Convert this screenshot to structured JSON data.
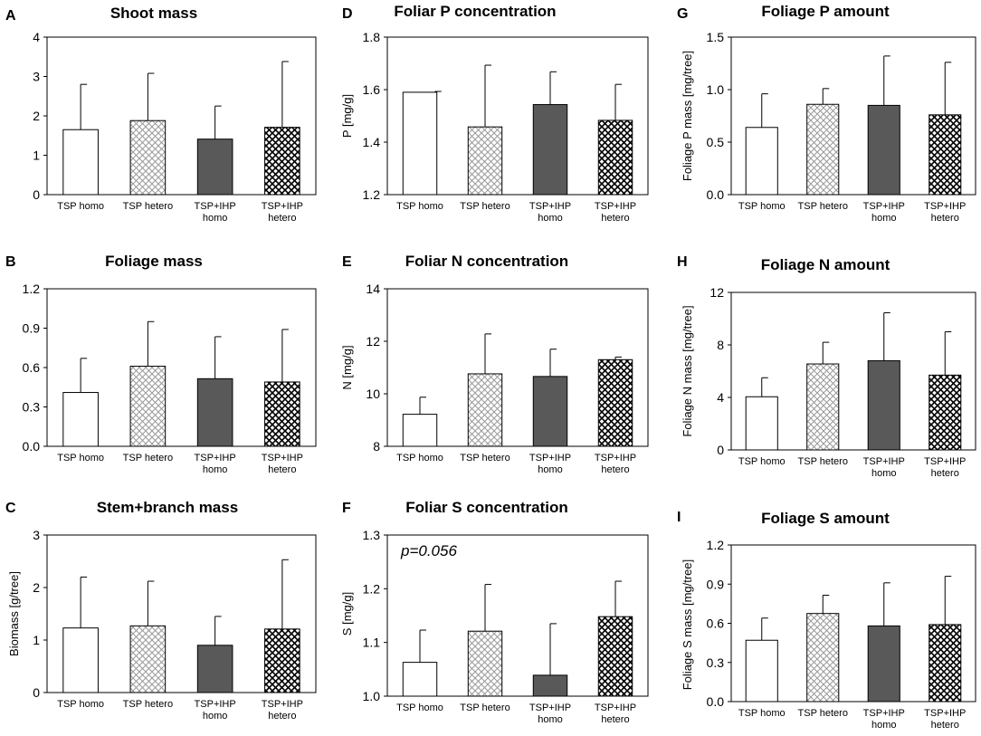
{
  "panels": [
    {
      "panel_label": "A",
      "title": "Shoot mass",
      "ylabel": "",
      "annotation": ""
    },
    {
      "panel_label": "B",
      "title": "Foliage mass",
      "ylabel": "",
      "annotation": ""
    },
    {
      "panel_label": "C",
      "title": "Stem+branch mass",
      "ylabel": "Biomass [g/tree]",
      "annotation": ""
    },
    {
      "panel_label": "D",
      "title": "Foliar P concentration",
      "ylabel": "P [mg/g]",
      "annotation": ""
    },
    {
      "panel_label": "E",
      "title": "Foliar N concentration",
      "ylabel": "N [mg/g]",
      "annotation": ""
    },
    {
      "panel_label": "F",
      "title": "Foliar S concentration",
      "ylabel": "S [mg/g]",
      "annotation": "p=0.056"
    },
    {
      "panel_label": "G",
      "title": "Foliage P amount",
      "ylabel": "Foliage P mass [mg/tree]",
      "annotation": ""
    },
    {
      "panel_label": "H",
      "title": "Foliage N amount",
      "ylabel": "Foliage N mass [mg/tree]",
      "annotation": ""
    },
    {
      "panel_label": "I",
      "title": "Foliage S amount",
      "ylabel": "Foliage S mass [mg/tree]",
      "annotation": ""
    }
  ],
  "colors": {
    "homo_fill": "#ffffff",
    "tsp_ihp_homo_fill": "#595959",
    "stroke": "#000000",
    "hetero_pattern": "#9a9a9a",
    "tsp_ihp_hetero_pattern": "#000000"
  },
  "chart_data": [
    {
      "panel": "A",
      "type": "bar",
      "title": "Shoot mass",
      "ylabel": "",
      "categories": [
        [
          "TSP homo"
        ],
        [
          "TSP hetero"
        ],
        [
          "TSP+IHP",
          "homo"
        ],
        [
          "TSP+IHP",
          "hetero"
        ]
      ],
      "values": [
        1.65,
        1.88,
        1.41,
        1.71
      ],
      "errors": [
        1.15,
        1.2,
        0.84,
        1.67
      ],
      "ylim": [
        0,
        4
      ],
      "yticks": [
        "0",
        "1",
        "2",
        "3",
        "4"
      ]
    },
    {
      "panel": "B",
      "type": "bar",
      "title": "Foliage mass",
      "ylabel": "",
      "categories": [
        [
          "TSP homo"
        ],
        [
          "TSP hetero"
        ],
        [
          "TSP+IHP",
          "homo"
        ],
        [
          "TSP+IHP",
          "hetero"
        ]
      ],
      "values": [
        0.41,
        0.61,
        0.515,
        0.49
      ],
      "errors": [
        0.26,
        0.34,
        0.32,
        0.4
      ],
      "ylim": [
        0,
        1.2
      ],
      "yticks": [
        "0.0",
        "0.3",
        "0.6",
        "0.9",
        "1.2"
      ]
    },
    {
      "panel": "C",
      "type": "bar",
      "title": "Stem+branch mass",
      "ylabel": "Biomass [g/tree]",
      "categories": [
        [
          "TSP homo"
        ],
        [
          "TSP hetero"
        ],
        [
          "TSP+IHP",
          "homo"
        ],
        [
          "TSP+IHP",
          "hetero"
        ]
      ],
      "values": [
        1.23,
        1.27,
        0.9,
        1.21
      ],
      "errors": [
        0.97,
        0.85,
        0.55,
        1.32
      ],
      "ylim": [
        0,
        3
      ],
      "yticks": [
        "0",
        "1",
        "2",
        "3"
      ]
    },
    {
      "panel": "D",
      "type": "bar",
      "title": "Foliar P concentration",
      "ylabel": "P [mg/g]",
      "categories": [
        [
          "TSP homo"
        ],
        [
          "TSP hetero"
        ],
        [
          "TSP+IHP",
          "homo"
        ],
        [
          "TSP+IHP",
          "hetero"
        ]
      ],
      "values": [
        1.59,
        1.458,
        1.543,
        1.483
      ],
      "errors": [
        0.003,
        0.235,
        0.125,
        0.137
      ],
      "ylim": [
        1.2,
        1.8
      ],
      "yticks": [
        "1.2",
        "1.4",
        "1.6",
        "1.8"
      ]
    },
    {
      "panel": "E",
      "type": "bar",
      "title": "Foliar N concentration",
      "ylabel": "N [mg/g]",
      "categories": [
        [
          "TSP homo"
        ],
        [
          "TSP hetero"
        ],
        [
          "TSP+IHP",
          "homo"
        ],
        [
          "TSP+IHP",
          "hetero"
        ]
      ],
      "values": [
        9.22,
        10.76,
        10.66,
        11.3
      ],
      "errors": [
        0.65,
        1.52,
        1.04,
        0.1
      ],
      "ylim": [
        8,
        14
      ],
      "yticks": [
        "8",
        "10",
        "12",
        "14"
      ]
    },
    {
      "panel": "F",
      "type": "bar",
      "title": "Foliar S concentration",
      "ylabel": "S [mg/g]",
      "categories": [
        [
          "TSP homo"
        ],
        [
          "TSP hetero"
        ],
        [
          "TSP+IHP",
          "homo"
        ],
        [
          "TSP+IHP",
          "hetero"
        ]
      ],
      "values": [
        1.063,
        1.121,
        1.039,
        1.148
      ],
      "errors": [
        0.06,
        0.087,
        0.096,
        0.066
      ],
      "ylim": [
        1.0,
        1.3
      ],
      "yticks": [
        "1.0",
        "1.1",
        "1.2",
        "1.3"
      ]
    },
    {
      "panel": "G",
      "type": "bar",
      "title": "Foliage P amount",
      "ylabel": "Foliage P mass [mg/tree]",
      "categories": [
        [
          "TSP homo"
        ],
        [
          "TSP hetero"
        ],
        [
          "TSP+IHP",
          "homo"
        ],
        [
          "TSP+IHP",
          "hetero"
        ]
      ],
      "values": [
        0.64,
        0.86,
        0.85,
        0.76
      ],
      "errors": [
        0.32,
        0.15,
        0.47,
        0.5
      ],
      "ylim": [
        0,
        1.5
      ],
      "yticks": [
        "0.0",
        "0.5",
        "1.0",
        "1.5"
      ]
    },
    {
      "panel": "H",
      "type": "bar",
      "title": "Foliage N amount",
      "ylabel": "Foliage N mass [mg/tree]",
      "categories": [
        [
          "TSP homo"
        ],
        [
          "TSP hetero"
        ],
        [
          "TSP+IHP",
          "homo"
        ],
        [
          "TSP+IHP",
          "hetero"
        ]
      ],
      "values": [
        4.05,
        6.55,
        6.8,
        5.7
      ],
      "errors": [
        1.45,
        1.65,
        3.65,
        3.3
      ],
      "ylim": [
        0,
        12
      ],
      "yticks": [
        "0",
        "4",
        "8",
        "12"
      ]
    },
    {
      "panel": "I",
      "type": "bar",
      "title": "Foliage S amount",
      "ylabel": "Foliage S mass [mg/tree]",
      "categories": [
        [
          "TSP homo"
        ],
        [
          "TSP hetero"
        ],
        [
          "TSP+IHP",
          "homo"
        ],
        [
          "TSP+IHP",
          "hetero"
        ]
      ],
      "values": [
        0.47,
        0.675,
        0.58,
        0.59
      ],
      "errors": [
        0.17,
        0.14,
        0.33,
        0.37
      ],
      "ylim": [
        0,
        1.2
      ],
      "yticks": [
        "0.0",
        "0.3",
        "0.6",
        "0.9",
        "1.2"
      ]
    }
  ]
}
